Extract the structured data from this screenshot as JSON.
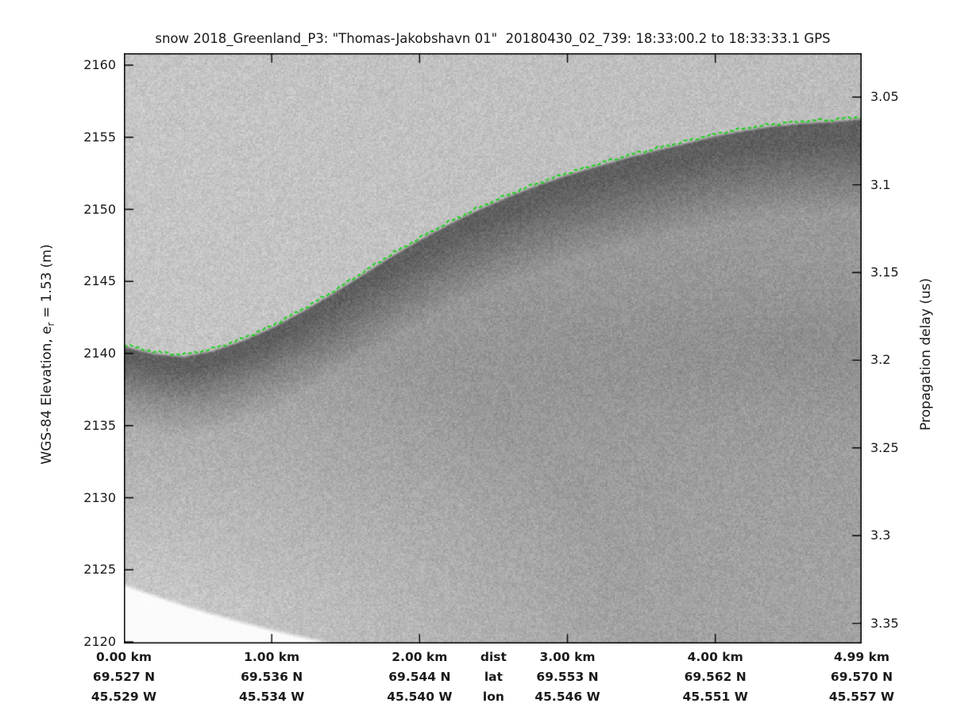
{
  "chart_data": {
    "type": "heatmap",
    "title": "snow 2018_Greenland_P3: \"Thomas-Jakobshavn 01\"  20180430_02_739: 18:33:00.2 to 18:33:33.1 GPS",
    "description": "Airborne snow-radar echogram (grayscale backscatter) with green dashed surface pick; white no-data wedge in lower-left corner",
    "left_axis": {
      "label_pre": "WGS-84 Elevation, e",
      "label_sub": "r",
      "label_post": " = 1.53 (m)",
      "ticks": [
        2160,
        2155,
        2150,
        2145,
        2140,
        2135,
        2130,
        2125,
        2120
      ],
      "range_top": 2160.83,
      "range_bottom": 2119.89
    },
    "right_axis": {
      "label": "Propagation delay (us)",
      "ticks": [
        "3.05",
        "3.1",
        "3.15",
        "3.2",
        "3.25",
        "3.3",
        "3.35"
      ],
      "tick_values": [
        3.05,
        3.1,
        3.15,
        3.2,
        3.25,
        3.3,
        3.35
      ],
      "range_top": 3.025,
      "range_bottom": 3.3615
    },
    "x_axis": {
      "header_labels": [
        "dist",
        "lat",
        "lon"
      ],
      "header_km": 2.5,
      "total_km": 4.99,
      "columns": [
        {
          "km": 0.0,
          "dist": "0.00 km",
          "lat": "69.527 N",
          "lon": "45.529 W"
        },
        {
          "km": 1.0,
          "dist": "1.00 km",
          "lat": "69.536 N",
          "lon": "45.534 W"
        },
        {
          "km": 2.0,
          "dist": "2.00 km",
          "lat": "69.544 N",
          "lon": "45.540 W"
        },
        {
          "km": 3.0,
          "dist": "3.00 km",
          "lat": "69.553 N",
          "lon": "45.546 W"
        },
        {
          "km": 4.0,
          "dist": "4.00 km",
          "lat": "69.562 N",
          "lon": "45.551 W"
        },
        {
          "km": 4.99,
          "dist": "4.99 km",
          "lat": "69.570 N",
          "lon": "45.557 W"
        }
      ]
    },
    "surface_pick": {
      "name": "surface-layer-pick",
      "color": "#1ecf1e",
      "style": "dashed",
      "distance_km": [
        0.0,
        0.2,
        0.4,
        0.6,
        0.8,
        1.0,
        1.2,
        1.4,
        1.6,
        1.8,
        2.0,
        2.2,
        2.4,
        2.6,
        2.8,
        3.0,
        3.2,
        3.4,
        3.6,
        3.8,
        4.0,
        4.2,
        4.4,
        4.6,
        4.8,
        4.99
      ],
      "elevation_m": [
        2140.6,
        2140.1,
        2139.9,
        2140.3,
        2141.0,
        2141.9,
        2143.0,
        2144.2,
        2145.5,
        2146.8,
        2148.0,
        2149.1,
        2150.1,
        2151.0,
        2151.8,
        2152.5,
        2153.1,
        2153.7,
        2154.2,
        2154.7,
        2155.2,
        2155.6,
        2155.9,
        2156.1,
        2156.2,
        2156.4
      ]
    },
    "colors": {
      "background": "#ffffff",
      "axis": "#000000",
      "text": "#1a1a1a",
      "gray_above_surface": "#c6c6c6",
      "gray_surface_band": "#606060",
      "gray_deep": "#979797",
      "nodata_white": "#fbfbfb"
    }
  }
}
